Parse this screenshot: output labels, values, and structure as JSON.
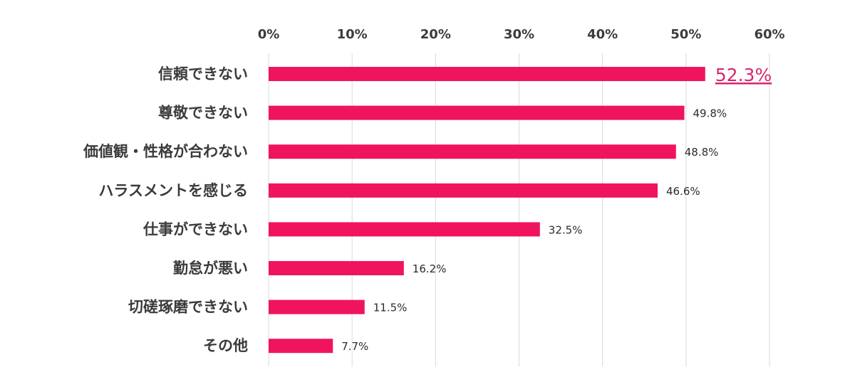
{
  "chart_data": {
    "type": "bar",
    "orientation": "horizontal",
    "categories": [
      "信頼できない",
      "尊敬できない",
      "価値観・性格が合わない",
      "ハラスメントを感じる",
      "仕事ができない",
      "勤怠が悪い",
      "切磋琢磨できない",
      "その他"
    ],
    "values": [
      52.3,
      49.8,
      48.8,
      46.6,
      32.5,
      16.2,
      11.5,
      7.7
    ],
    "value_labels": [
      "52.3%",
      "49.8%",
      "48.8%",
      "46.6%",
      "32.5%",
      "16.2%",
      "11.5%",
      "7.7%"
    ],
    "highlight_index": 0,
    "xlim": [
      0,
      60
    ],
    "x_ticks": [
      0,
      10,
      20,
      30,
      40,
      50,
      60
    ],
    "x_tick_labels": [
      "0%",
      "10%",
      "20%",
      "30%",
      "40%",
      "50%",
      "60%"
    ],
    "x_axis_position": "top",
    "grid": true,
    "legend": "none",
    "bar_color": "#f0145f",
    "highlight_label_color": "#d6266e",
    "grid_color": "#d9d9d9",
    "text_color": "#3b3b3b"
  }
}
